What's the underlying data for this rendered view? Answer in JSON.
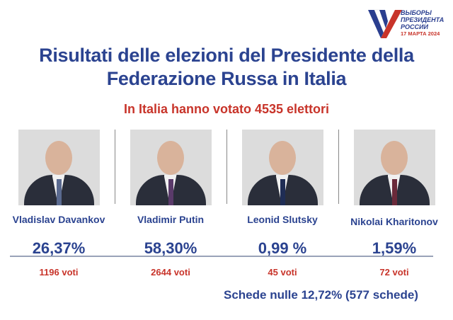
{
  "logo": {
    "line1": "ВЫБОРЫ",
    "line2": "ПРЕЗИДЕНТА",
    "line3": "РОССИИ",
    "date": "17 МАРТА 2024",
    "colors": [
      "#2a3e8f",
      "#c8342a",
      "#ffffff"
    ]
  },
  "title_line1": "Risultati delle elezioni del Presidente della",
  "title_line2": "Federazione Russa in Italia",
  "subtitle": "In Italia hanno votato 4535 elettori",
  "candidates": [
    {
      "name": "Vladislav Davankov",
      "percent": "26,37%",
      "votes": "1196 voti"
    },
    {
      "name": "Vladimir Putin",
      "percent": "58,30%",
      "votes": "2644 voti"
    },
    {
      "name": "Leonid Slutsky",
      "percent": "0,99 %",
      "votes": "45 voti"
    },
    {
      "name": "Nikolai Kharitonov",
      "percent": "1,59%",
      "votes": "72 voti"
    }
  ],
  "null_ballots": "Schede nulle 12,72% (577 schede)",
  "colors": {
    "blue": "#2b4390",
    "red": "#c8342a"
  }
}
